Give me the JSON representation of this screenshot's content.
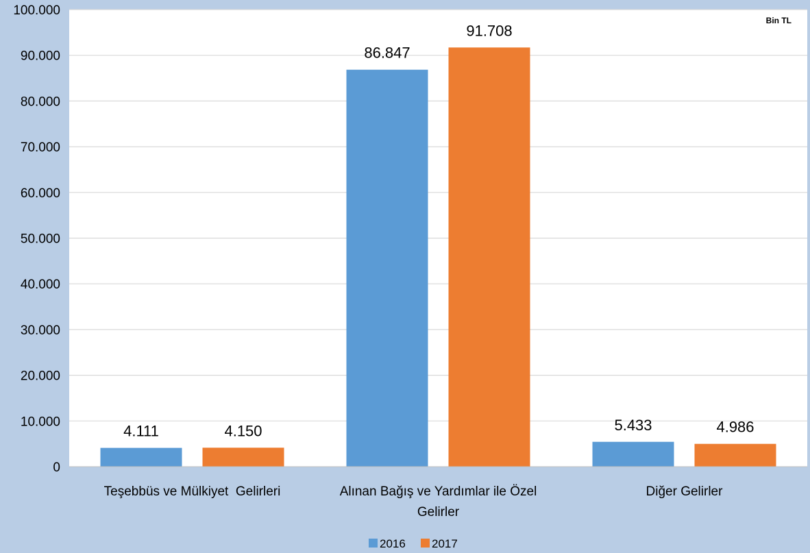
{
  "chart_data": {
    "type": "bar",
    "unit_label": "Bin TL",
    "categories": [
      [
        "Teşebbüs ve Mülkiyet  Gelirleri"
      ],
      [
        "Alınan Bağış ve Yardımlar ile Özel",
        "Gelirler"
      ],
      [
        "Diğer Gelirler"
      ]
    ],
    "series": [
      {
        "name": "2016",
        "color": "#5b9bd5",
        "values": [
          4111,
          86847,
          5433
        ],
        "labels": [
          "4.111",
          "86.847",
          "5.433"
        ]
      },
      {
        "name": "2017",
        "color": "#ed7d31",
        "values": [
          4150,
          91708,
          4986
        ],
        "labels": [
          "4.150",
          "91.708",
          "4.986"
        ]
      }
    ],
    "ylim": [
      0,
      100000
    ],
    "yticks": [
      0,
      10000,
      20000,
      30000,
      40000,
      50000,
      60000,
      70000,
      80000,
      90000,
      100000
    ],
    "ytick_labels": [
      "0",
      "10.000",
      "20.000",
      "30.000",
      "40.000",
      "50.000",
      "60.000",
      "70.000",
      "80.000",
      "90.000",
      "100.000"
    ],
    "grid": true,
    "legend_position": "bottom-center"
  }
}
